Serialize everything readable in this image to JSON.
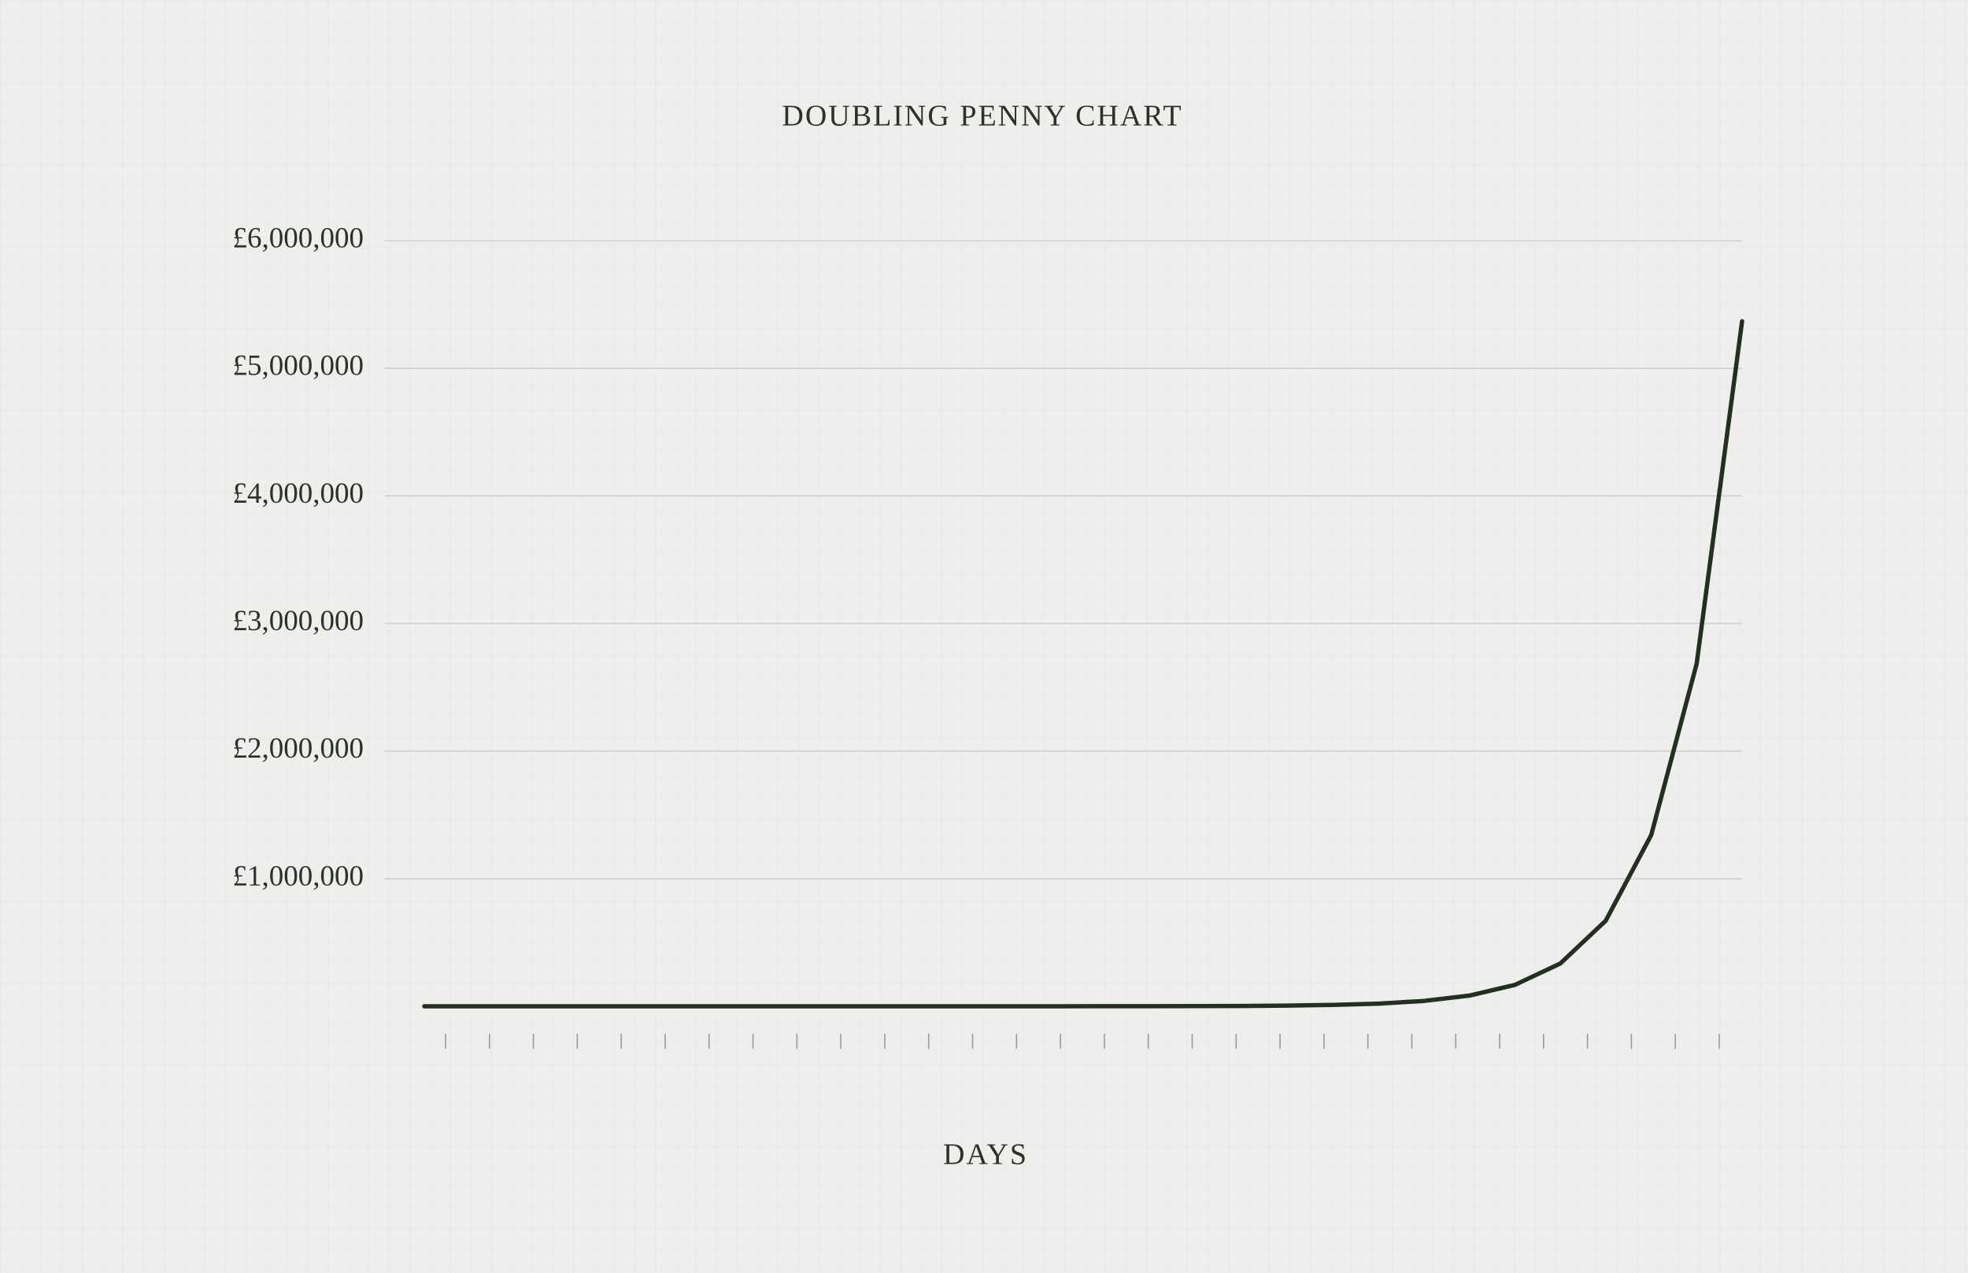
{
  "chart_data": {
    "type": "line",
    "title": "DOUBLING PENNY CHART",
    "x_label": "DAYS",
    "categories": [
      null,
      null,
      null,
      null,
      null,
      null,
      null,
      null,
      null,
      null,
      null,
      null,
      null,
      null,
      null,
      null,
      null,
      null,
      null,
      null,
      null,
      null,
      null,
      null,
      null,
      null,
      null,
      null,
      null,
      null
    ],
    "values": [
      0.01,
      0.02,
      0.04,
      0.08,
      0.16,
      0.32,
      0.64,
      1.28,
      2.56,
      5.12,
      10.24,
      20.48,
      40.96,
      81.92,
      163.84,
      327.68,
      655.36,
      1310.72,
      2621.44,
      5242.88,
      10485.76,
      20971.52,
      41943.04,
      83886.08,
      167772.16,
      335544.32,
      671088.64,
      1342177.28,
      2684354.56,
      5368709.12
    ],
    "color": "#24301f",
    "ylim": [
      0,
      6000000
    ],
    "yticks": [
      {
        "value": 1000000,
        "label": "£1,000,000"
      },
      {
        "value": 2000000,
        "label": "£2,000,000"
      },
      {
        "value": 3000000,
        "label": "£3,000,000"
      },
      {
        "value": 4000000,
        "label": "£4,000,000"
      },
      {
        "value": 5000000,
        "label": "£5,000,000"
      },
      {
        "value": 6000000,
        "label": "£6,000,000"
      }
    ],
    "grid": true
  }
}
